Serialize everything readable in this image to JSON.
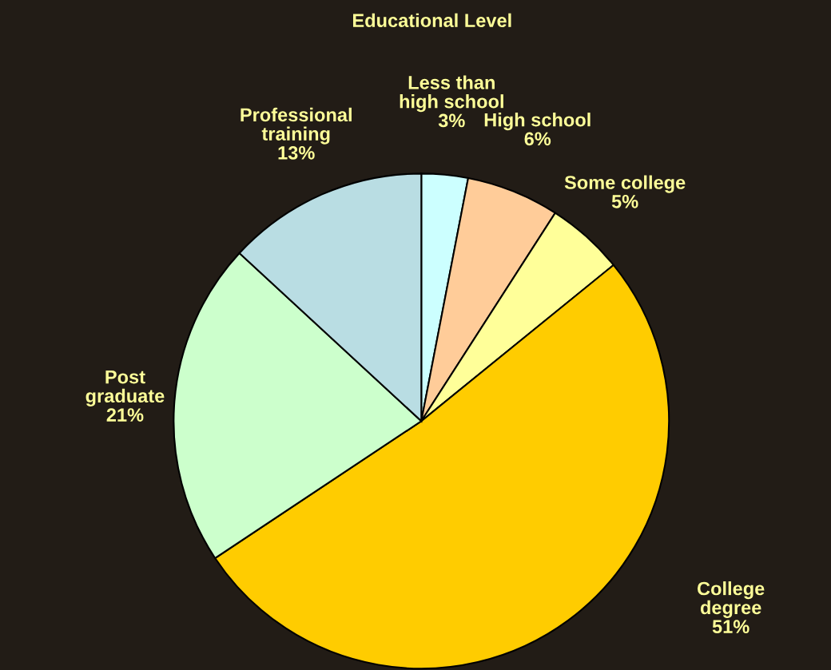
{
  "chart_data": {
    "type": "pie",
    "title": "Educational Level",
    "categories": [
      "Less than\nhigh school",
      "High school",
      "Some college",
      "College\ndegree",
      "Post\ngraduate",
      "Professional\ntraining"
    ],
    "values": [
      3,
      6,
      5,
      51,
      21,
      13
    ],
    "value_labels": [
      "3%",
      "6%",
      "5%",
      "51%",
      "21%",
      "13%"
    ],
    "colors": [
      "#ccffff",
      "#ffcc99",
      "#ffff99",
      "#ffcc00",
      "#ccffcc",
      "#b9dde3"
    ],
    "legend": false
  }
}
